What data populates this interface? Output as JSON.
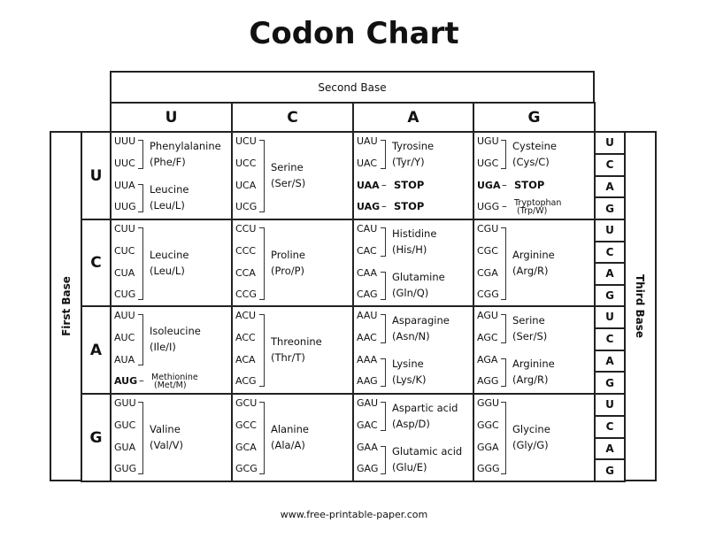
{
  "title": "Codon Chart",
  "second_base_label": "Second Base",
  "first_base_label": "First Base",
  "third_base_label": "Third Base",
  "bases": [
    "U",
    "C",
    "A",
    "G"
  ],
  "footer": "www.free-printable-paper.com",
  "rows": [
    {
      "cells": [
        {
          "codons": [
            "UUU",
            "UUC",
            "UUA",
            "UUG"
          ],
          "groups": [
            {
              "span": [
                0,
                1
              ],
              "name": "Phenylalanine",
              "abbr": "(Phe/F)"
            },
            {
              "span": [
                2,
                3
              ],
              "name": "Leucine",
              "abbr": "(Leu/L)"
            }
          ]
        },
        {
          "codons": [
            "UCU",
            "UCC",
            "UCA",
            "UCG"
          ],
          "groups": [
            {
              "span": [
                0,
                3
              ],
              "name": "Serine",
              "abbr": "(Ser/S)"
            }
          ]
        },
        {
          "codons": [
            "UAU",
            "UAC",
            "UAA",
            "UAG"
          ],
          "groups": [
            {
              "span": [
                0,
                1
              ],
              "name": "Tyrosine",
              "abbr": "(Tyr/Y)"
            },
            {
              "span": [
                2,
                2
              ],
              "name": "STOP",
              "bold": true
            },
            {
              "span": [
                3,
                3
              ],
              "name": "STOP",
              "bold": true
            }
          ]
        },
        {
          "codons": [
            "UGU",
            "UGC",
            "UGA",
            "UGG"
          ],
          "groups": [
            {
              "span": [
                0,
                1
              ],
              "name": "Cysteine",
              "abbr": "(Cys/C)"
            },
            {
              "span": [
                2,
                2
              ],
              "name": "STOP",
              "bold": true
            },
            {
              "span": [
                3,
                3
              ],
              "name": "Tryptophan",
              "abbr": "(Trp/W)",
              "small": true
            }
          ]
        }
      ]
    },
    {
      "cells": [
        {
          "codons": [
            "CUU",
            "CUC",
            "CUA",
            "CUG"
          ],
          "groups": [
            {
              "span": [
                0,
                3
              ],
              "name": "Leucine",
              "abbr": "(Leu/L)"
            }
          ]
        },
        {
          "codons": [
            "CCU",
            "CCC",
            "CCA",
            "CCG"
          ],
          "groups": [
            {
              "span": [
                0,
                3
              ],
              "name": "Proline",
              "abbr": "(Pro/P)"
            }
          ]
        },
        {
          "codons": [
            "CAU",
            "CAC",
            "CAA",
            "CAG"
          ],
          "groups": [
            {
              "span": [
                0,
                1
              ],
              "name": "Histidine",
              "abbr": "(His/H)"
            },
            {
              "span": [
                2,
                3
              ],
              "name": "Glutamine",
              "abbr": "(Gln/Q)"
            }
          ]
        },
        {
          "codons": [
            "CGU",
            "CGC",
            "CGA",
            "CGG"
          ],
          "groups": [
            {
              "span": [
                0,
                3
              ],
              "name": "Arginine",
              "abbr": "(Arg/R)"
            }
          ]
        }
      ]
    },
    {
      "cells": [
        {
          "codons": [
            "AUU",
            "AUC",
            "AUA",
            "AUG"
          ],
          "groups": [
            {
              "span": [
                0,
                2
              ],
              "name": "Isoleucine",
              "abbr": "(Ile/I)"
            },
            {
              "span": [
                3,
                3
              ],
              "name": "Methionine",
              "abbr": "(Met/M)",
              "small": true,
              "bold": true
            }
          ]
        },
        {
          "codons": [
            "ACU",
            "ACC",
            "ACA",
            "ACG"
          ],
          "groups": [
            {
              "span": [
                0,
                3
              ],
              "name": "Threonine",
              "abbr": "(Thr/T)"
            }
          ]
        },
        {
          "codons": [
            "AAU",
            "AAC",
            "AAA",
            "AAG"
          ],
          "groups": [
            {
              "span": [
                0,
                1
              ],
              "name": "Asparagine",
              "abbr": "(Asn/N)"
            },
            {
              "span": [
                2,
                3
              ],
              "name": "Lysine",
              "abbr": "(Lys/K)"
            }
          ]
        },
        {
          "codons": [
            "AGU",
            "AGC",
            "AGA",
            "AGG"
          ],
          "groups": [
            {
              "span": [
                0,
                1
              ],
              "name": "Serine",
              "abbr": "(Ser/S)"
            },
            {
              "span": [
                2,
                3
              ],
              "name": "Arginine",
              "abbr": "(Arg/R)"
            }
          ]
        }
      ]
    },
    {
      "cells": [
        {
          "codons": [
            "GUU",
            "GUC",
            "GUA",
            "GUG"
          ],
          "groups": [
            {
              "span": [
                0,
                3
              ],
              "name": "Valine",
              "abbr": "(Val/V)"
            }
          ]
        },
        {
          "codons": [
            "GCU",
            "GCC",
            "GCA",
            "GCG"
          ],
          "groups": [
            {
              "span": [
                0,
                3
              ],
              "name": "Alanine",
              "abbr": "(Ala/A)"
            }
          ]
        },
        {
          "codons": [
            "GAU",
            "GAC",
            "GAA",
            "GAG"
          ],
          "groups": [
            {
              "span": [
                0,
                1
              ],
              "name": "Aspartic acid",
              "abbr": "(Asp/D)"
            },
            {
              "span": [
                2,
                3
              ],
              "name": "Glutamic acid",
              "abbr": "(Glu/E)"
            }
          ]
        },
        {
          "codons": [
            "GGU",
            "GGC",
            "GGA",
            "GGG"
          ],
          "groups": [
            {
              "span": [
                0,
                3
              ],
              "name": "Glycine",
              "abbr": "(Gly/G)"
            }
          ]
        }
      ]
    }
  ]
}
